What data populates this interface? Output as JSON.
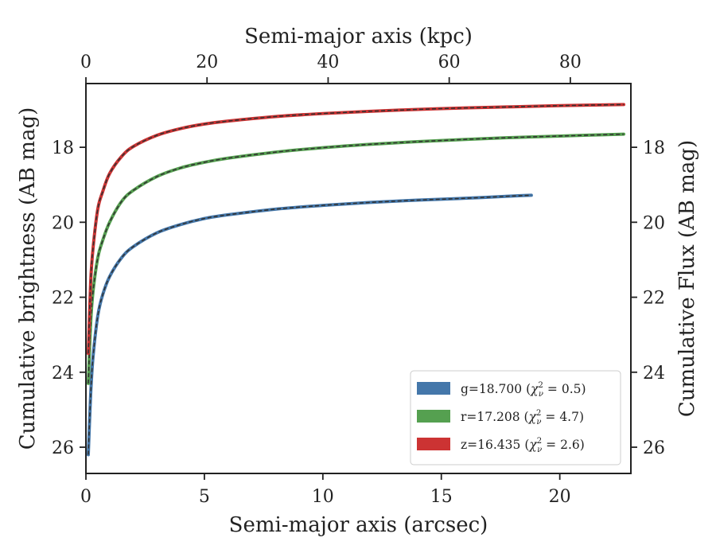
{
  "chart_data": {
    "type": "line",
    "title": "",
    "xlabel": "Semi-major axis (arcsec)",
    "ylabel": "Cumulative brightness (AB mag)",
    "x2label": "Semi-major axis (kpc)",
    "y2label": "Cumulative Flux (AB mag)",
    "xlim": [
      0,
      23
    ],
    "ylim": [
      26.7,
      16.3
    ],
    "y_inverted": true,
    "x2lim": [
      0,
      90
    ],
    "xticks": [
      "0",
      "5",
      "10",
      "15",
      "20"
    ],
    "yticks": [
      "18",
      "20",
      "22",
      "24",
      "26"
    ],
    "x2ticks": [
      "0",
      "20",
      "40",
      "60",
      "80"
    ],
    "y2ticks": [
      "18",
      "20",
      "22",
      "24",
      "26"
    ],
    "grid": false,
    "legend_position": "lower-right",
    "series": [
      {
        "name": "g=18.700 (χ²_ν = 0.5)",
        "legend_main": "g=18.700 (",
        "legend_chi": "χ",
        "legend_sup": "2",
        "legend_sub": "ν",
        "legend_tail": " = 0.5)",
        "color": "#4477aa",
        "x": [
          0.1,
          0.2,
          0.3,
          0.5,
          0.7,
          1.0,
          1.5,
          2.0,
          3.0,
          4.0,
          5.0,
          6.0,
          8.0,
          10.0,
          12.0,
          14.0,
          16.0,
          18.0,
          18.8
        ],
        "y": [
          26.2,
          24.6,
          23.6,
          22.5,
          21.95,
          21.45,
          20.95,
          20.65,
          20.28,
          20.06,
          19.9,
          19.8,
          19.65,
          19.55,
          19.47,
          19.41,
          19.36,
          19.3,
          19.28
        ]
      },
      {
        "name": "r=17.208 (χ²_ν = 4.7)",
        "legend_main": "r=17.208 (",
        "legend_chi": "χ",
        "legend_sup": "2",
        "legend_sub": "ν",
        "legend_tail": " = 4.7)",
        "color": "#55a050",
        "x": [
          0.1,
          0.2,
          0.3,
          0.5,
          0.7,
          1.0,
          1.5,
          2.0,
          3.0,
          4.0,
          5.0,
          6.0,
          8.0,
          10.0,
          12.0,
          14.0,
          16.0,
          18.0,
          20.0,
          22.7
        ],
        "y": [
          24.3,
          22.7,
          21.85,
          20.95,
          20.5,
          20.0,
          19.45,
          19.15,
          18.78,
          18.55,
          18.4,
          18.29,
          18.13,
          18.01,
          17.92,
          17.85,
          17.79,
          17.74,
          17.7,
          17.65
        ]
      },
      {
        "name": "z=16.435 (χ²_ν = 2.6)",
        "legend_main": "z=16.435 (",
        "legend_chi": "χ",
        "legend_sup": "2",
        "legend_sub": "ν",
        "legend_tail": " = 2.6)",
        "color": "#cc3333",
        "x": [
          0.1,
          0.2,
          0.3,
          0.5,
          0.7,
          1.0,
          1.5,
          2.0,
          3.0,
          4.0,
          5.0,
          6.0,
          8.0,
          10.0,
          12.0,
          14.0,
          16.0,
          18.0,
          20.0,
          22.7
        ],
        "y": [
          23.5,
          21.6,
          20.7,
          19.65,
          19.2,
          18.7,
          18.25,
          17.98,
          17.68,
          17.5,
          17.38,
          17.3,
          17.18,
          17.1,
          17.04,
          16.99,
          16.95,
          16.92,
          16.89,
          16.86
        ]
      }
    ]
  }
}
